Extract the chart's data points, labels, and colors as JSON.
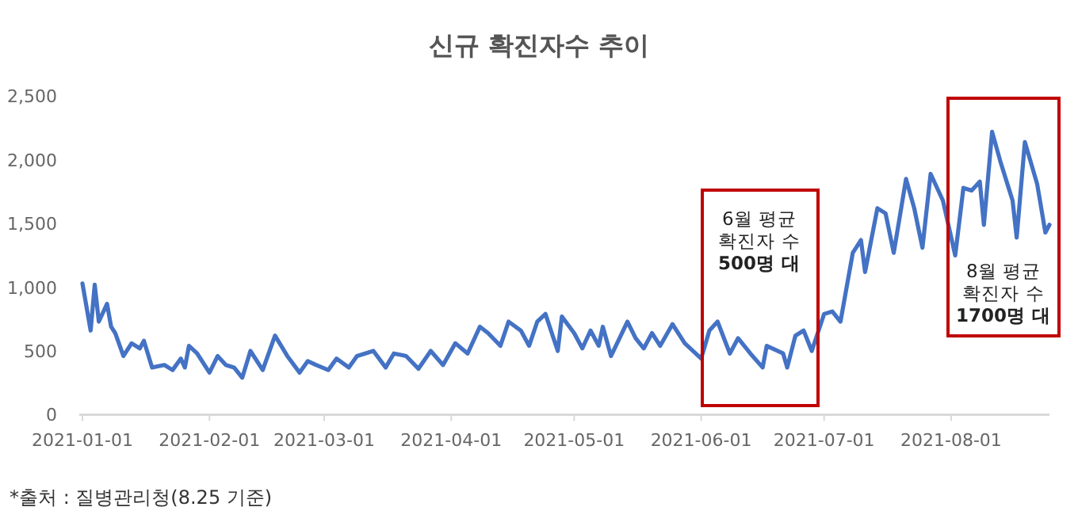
{
  "chart_data": {
    "type": "line",
    "title": "신규 확진자수 추이",
    "x": [
      "2021-01-01",
      "2021-01-03",
      "2021-01-04",
      "2021-01-05",
      "2021-01-07",
      "2021-01-08",
      "2021-01-09",
      "2021-01-11",
      "2021-01-13",
      "2021-01-15",
      "2021-01-16",
      "2021-01-18",
      "2021-01-21",
      "2021-01-23",
      "2021-01-25",
      "2021-01-26",
      "2021-01-27",
      "2021-01-29",
      "2021-02-01",
      "2021-02-03",
      "2021-02-05",
      "2021-02-07",
      "2021-02-09",
      "2021-02-11",
      "2021-02-14",
      "2021-02-17",
      "2021-02-20",
      "2021-02-23",
      "2021-02-25",
      "2021-02-27",
      "2021-03-02",
      "2021-03-04",
      "2021-03-07",
      "2021-03-09",
      "2021-03-11",
      "2021-03-13",
      "2021-03-16",
      "2021-03-18",
      "2021-03-21",
      "2021-03-24",
      "2021-03-27",
      "2021-03-30",
      "2021-04-02",
      "2021-04-05",
      "2021-04-08",
      "2021-04-10",
      "2021-04-13",
      "2021-04-15",
      "2021-04-18",
      "2021-04-20",
      "2021-04-22",
      "2021-04-24",
      "2021-04-27",
      "2021-04-28",
      "2021-05-01",
      "2021-05-03",
      "2021-05-05",
      "2021-05-07",
      "2021-05-08",
      "2021-05-10",
      "2021-05-14",
      "2021-05-16",
      "2021-05-18",
      "2021-05-20",
      "2021-05-22",
      "2021-05-25",
      "2021-05-28",
      "2021-06-01",
      "2021-06-03",
      "2021-06-05",
      "2021-06-08",
      "2021-06-10",
      "2021-06-13",
      "2021-06-16",
      "2021-06-17",
      "2021-06-21",
      "2021-06-22",
      "2021-06-24",
      "2021-06-26",
      "2021-06-28",
      "2021-07-01",
      "2021-07-03",
      "2021-07-05",
      "2021-07-08",
      "2021-07-10",
      "2021-07-11",
      "2021-07-14",
      "2021-07-16",
      "2021-07-18",
      "2021-07-21",
      "2021-07-23",
      "2021-07-25",
      "2021-07-27",
      "2021-07-30",
      "2021-08-02",
      "2021-08-04",
      "2021-08-06",
      "2021-08-08",
      "2021-08-09",
      "2021-08-11",
      "2021-08-13",
      "2021-08-16",
      "2021-08-17",
      "2021-08-19",
      "2021-08-22",
      "2021-08-24",
      "2021-08-25"
    ],
    "series": [
      {
        "color": "#4472c4",
        "values": [
          1030,
          660,
          1020,
          730,
          870,
          690,
          640,
          460,
          560,
          520,
          580,
          370,
          390,
          350,
          440,
          370,
          540,
          480,
          330,
          460,
          390,
          370,
          290,
          500,
          350,
          620,
          460,
          330,
          420,
          390,
          350,
          440,
          370,
          460,
          480,
          500,
          370,
          480,
          460,
          360,
          500,
          390,
          560,
          480,
          690,
          640,
          540,
          730,
          660,
          540,
          730,
          790,
          500,
          770,
          640,
          520,
          660,
          540,
          690,
          460,
          730,
          600,
          520,
          640,
          540,
          710,
          560,
          440,
          660,
          730,
          480,
          600,
          480,
          370,
          540,
          480,
          370,
          620,
          660,
          500,
          790,
          810,
          730,
          1270,
          1370,
          1120,
          1620,
          1580,
          1270,
          1850,
          1620,
          1310,
          1890,
          1680,
          1250,
          1780,
          1760,
          1830,
          1490,
          2220,
          1990,
          1680,
          1390,
          2140,
          1810,
          1430,
          1490
        ]
      }
    ],
    "xlim": [
      "2021-01-01",
      "2021-08-25"
    ],
    "xticks": [
      "2021-01-01",
      "2021-02-01",
      "2021-03-01",
      "2021-04-01",
      "2021-05-01",
      "2021-06-01",
      "2021-07-01",
      "2021-08-01"
    ],
    "ylim": [
      0,
      2500
    ],
    "yticks": [
      0,
      500,
      {
        "value": 1000,
        "label": "1,000"
      },
      {
        "value": 1500,
        "label": "1,500"
      },
      {
        "value": 2000,
        "label": "2,000"
      },
      {
        "value": 2500,
        "label": "2,500"
      }
    ],
    "grid": false,
    "annotations": [
      "6월 평균\n확진자 수\n500명 대",
      "8월 평균\n확진자 수\n1700명 대",
      "*출처 : 질병관리청(8.25 기준)"
    ]
  }
}
